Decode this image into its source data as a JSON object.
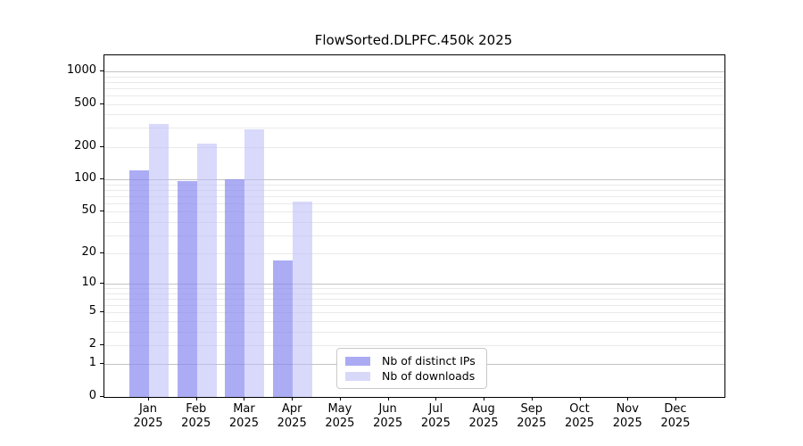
{
  "chart_data": {
    "type": "bar",
    "title": "FlowSorted.DLPFC.450k 2025",
    "x": [
      "Jan 2025",
      "Feb 2025",
      "Mar 2025",
      "Apr 2025",
      "May 2025",
      "Jun 2025",
      "Jul 2025",
      "Aug 2025",
      "Sep 2025",
      "Oct 2025",
      "Nov 2025",
      "Dec 2025"
    ],
    "x_line1": [
      "Jan",
      "Feb",
      "Mar",
      "Apr",
      "May",
      "Jun",
      "Jul",
      "Aug",
      "Sep",
      "Oct",
      "Nov",
      "Dec"
    ],
    "x_line2": "2025",
    "series": [
      {
        "name": "Nb of distinct IPs",
        "values": [
          122,
          96,
          101,
          17,
          0,
          0,
          0,
          0,
          0,
          0,
          0,
          0
        ],
        "fill": "rgba(132,132,240,0.68)",
        "swatch": "#ababf4"
      },
      {
        "name": "Nb of downloads",
        "values": [
          326,
          215,
          290,
          62,
          0,
          0,
          0,
          0,
          0,
          0,
          0,
          0
        ],
        "fill": "rgba(185,185,247,0.55)",
        "swatch": "#d8d8f9"
      }
    ],
    "y_scale": "log1p",
    "ylim": [
      0,
      1400
    ],
    "y_ticks": [
      0,
      1,
      2,
      5,
      10,
      20,
      50,
      100,
      200,
      500,
      1000
    ],
    "y_grid_major": [
      1,
      10,
      100,
      1000
    ],
    "y_grid_minor": [
      2,
      3,
      4,
      5,
      6,
      7,
      8,
      9,
      20,
      30,
      40,
      50,
      60,
      70,
      80,
      90,
      200,
      300,
      400,
      500,
      600,
      700,
      800,
      900
    ],
    "grid": true,
    "legend_position": "bottom-center"
  }
}
